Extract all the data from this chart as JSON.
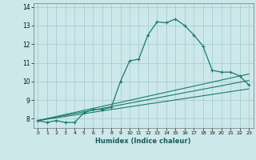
{
  "xlabel": "Humidex (Indice chaleur)",
  "bg_color": "#cce8ea",
  "grid_color": "#aacdd0",
  "line_color": "#1a7a6e",
  "xlim": [
    -0.5,
    23.5
  ],
  "ylim": [
    7.5,
    14.2
  ],
  "xticks": [
    0,
    1,
    2,
    3,
    4,
    5,
    6,
    7,
    8,
    9,
    10,
    11,
    12,
    13,
    14,
    15,
    16,
    17,
    18,
    19,
    20,
    21,
    22,
    23
  ],
  "yticks": [
    8,
    9,
    10,
    11,
    12,
    13,
    14
  ],
  "curve1_x": [
    0,
    1,
    2,
    3,
    4,
    5,
    6,
    7,
    8,
    9,
    10,
    11,
    12,
    13,
    14,
    15,
    16,
    17,
    18,
    19,
    20,
    21,
    22,
    23
  ],
  "curve1_y": [
    7.9,
    7.8,
    7.9,
    7.8,
    7.8,
    8.3,
    8.5,
    8.5,
    8.6,
    10.0,
    11.1,
    11.2,
    12.5,
    13.2,
    13.15,
    13.35,
    13.0,
    12.5,
    11.9,
    10.6,
    10.5,
    10.5,
    10.3,
    9.8
  ],
  "curve2_x": [
    0,
    23
  ],
  "curve2_y": [
    7.9,
    9.6
  ],
  "curve3_x": [
    0,
    23
  ],
  "curve3_y": [
    7.9,
    10.05
  ],
  "curve4_x": [
    0,
    23
  ],
  "curve4_y": [
    7.9,
    10.4
  ]
}
